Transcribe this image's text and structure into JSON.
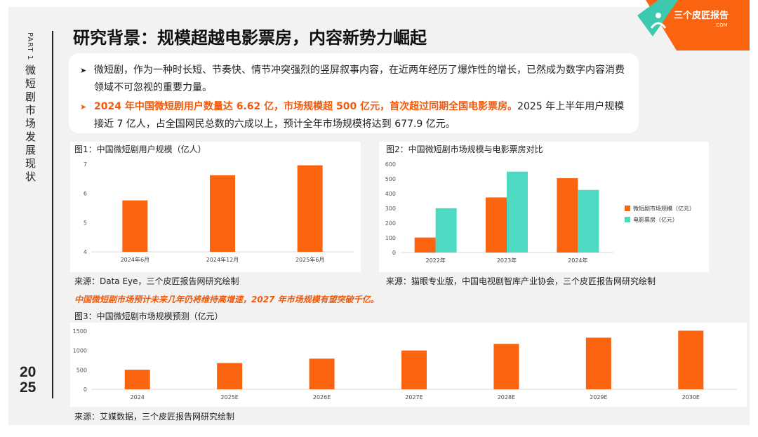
{
  "header": {
    "part": "PART 1",
    "vertical_title": "微短剧市场发展现状",
    "year_top": "20",
    "year_bottom": "25",
    "title": "研究背景：规模超越电影票房，内容新势力崛起",
    "logo_text": "三个皮匠报告",
    "logo_sub": ".COM"
  },
  "bullets": {
    "b1": "微短剧，作为一种时长短、节奏快、情节冲突强烈的竖屏叙事内容，在近两年经历了爆炸性的增长，已然成为数字内容消费领域不可忽视的重要力量。",
    "b2_highlight": "2024 年中国微短剧用户数量达 6.62 亿，市场规模超 500 亿元，首次超过同期全国电影票房。",
    "b2_rest": "2025 年上半年用户规模接近 7 亿人，占全国网民总数的六成以上，预计全年市场规模将达到 677.9 亿元。"
  },
  "colors": {
    "orange": "#fa6410",
    "teal": "#4dd9c2",
    "accent": "#f15a0a"
  },
  "figure1": {
    "caption": "图1：中国微短剧用户规模（亿人）",
    "source": "来源：Data Eye，三个皮匠报告网研究绘制"
  },
  "figure2": {
    "caption": "图2：中国微短剧市场规模与电影票房对比",
    "source": "来源：猫眼专业版，中国电视剧智库产业协会，三个皮匠报告网研究绘制"
  },
  "note": "中国微短剧市场预计未来几年仍将维持高增速，2027 年市场规模有望突破千亿。",
  "figure3": {
    "caption": "图3：中国微短剧市场规模预测（亿元）",
    "source": "来源：艾媒数据，三个皮匠报告网研究绘制"
  },
  "chart_data": [
    {
      "type": "bar",
      "title": "中国微短剧用户规模（亿人）",
      "categories": [
        "2024年6月",
        "2024年12月",
        "2025年6月"
      ],
      "values": [
        5.76,
        6.62,
        6.96
      ],
      "ylim": [
        4,
        7
      ],
      "yticks": [
        4,
        5,
        6,
        7
      ],
      "xlabel": "",
      "ylabel": ""
    },
    {
      "type": "bar",
      "title": "中国微短剧市场规模与电影票房对比",
      "categories": [
        "2022年",
        "2023年",
        "2024年"
      ],
      "series": [
        {
          "name": "微短剧市场规模（亿元）",
          "values": [
            101.7,
            373.9,
            504.4
          ]
        },
        {
          "name": "电影票房（亿元）",
          "values": [
            300.7,
            549.2,
            425.0
          ]
        }
      ],
      "ylim": [
        0,
        600
      ],
      "yticks": [
        0,
        100,
        200,
        300,
        400,
        500,
        600
      ],
      "legend": "right",
      "xlabel": "",
      "ylabel": ""
    },
    {
      "type": "bar",
      "title": "中国微短剧市场规模预测（亿元）",
      "categories": [
        "2024",
        "2025E",
        "2026E",
        "2027E",
        "2028E",
        "2029E",
        "2030E"
      ],
      "values": [
        505,
        677.9,
        790,
        1000,
        1170,
        1330,
        1510
      ],
      "ylim": [
        0,
        1500
      ],
      "yticks": [
        0,
        500,
        1000,
        1500
      ],
      "xlabel": "",
      "ylabel": ""
    }
  ]
}
